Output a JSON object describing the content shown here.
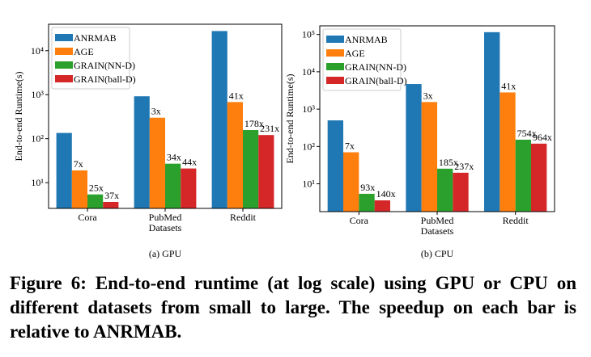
{
  "chart_data": [
    {
      "type": "bar",
      "subcaption": "(a)  GPU",
      "xlabel": "Datasets",
      "ylabel": "End-to-end Runtime(s)",
      "log_y": true,
      "categories": [
        "Cora",
        "PubMed",
        "Reddit"
      ],
      "ylim": [
        2.6,
        40000
      ],
      "yticks": [
        {
          "value": 10,
          "label": "10¹"
        },
        {
          "value": 100,
          "label": "10²"
        },
        {
          "value": 1000,
          "label": "10³"
        },
        {
          "value": 10000,
          "label": "10⁴"
        }
      ],
      "legend": "upper left",
      "series": [
        {
          "name": "ANRMAB",
          "color": "#1f77b4",
          "values": [
            135,
            920,
            28000
          ]
        },
        {
          "name": "AGE",
          "color": "#ff7f0e",
          "values": [
            19,
            300,
            680
          ],
          "labels": [
            "7x",
            "3x",
            "41x"
          ]
        },
        {
          "name": "GRAIN(NN-D)",
          "color": "#2ca02c",
          "values": [
            5.4,
            27,
            157
          ],
          "labels": [
            "25x",
            "34x",
            "178x"
          ]
        },
        {
          "name": "GRAIN(ball-D)",
          "color": "#d62728",
          "values": [
            3.65,
            21,
            121
          ],
          "labels": [
            "37x",
            "44x",
            "231x"
          ]
        }
      ]
    },
    {
      "type": "bar",
      "subcaption": "(b)  CPU",
      "xlabel": "Datasets",
      "ylabel": "End-to-end Runtime(s)",
      "log_y": true,
      "categories": [
        "Cora",
        "PubMed",
        "Reddit"
      ],
      "ylim": [
        1.8,
        170000
      ],
      "yticks": [
        {
          "value": 10,
          "label": "10¹"
        },
        {
          "value": 100,
          "label": "10²"
        },
        {
          "value": 1000,
          "label": "10³"
        },
        {
          "value": 10000,
          "label": "10⁴"
        },
        {
          "value": 100000,
          "label": "10⁵"
        }
      ],
      "legend": "upper left",
      "series": [
        {
          "name": "ANRMAB",
          "color": "#1f77b4",
          "values": [
            500,
            4700,
            115000
          ]
        },
        {
          "name": "AGE",
          "color": "#ff7f0e",
          "values": [
            70,
            1550,
            2800
          ],
          "labels": [
            "7x",
            "3x",
            "41x"
          ]
        },
        {
          "name": "GRAIN(NN-D)",
          "color": "#2ca02c",
          "values": [
            5.4,
            25.4,
            152
          ],
          "labels": [
            "93x",
            "185x",
            "754x"
          ]
        },
        {
          "name": "GRAIN(ball-D)",
          "color": "#d62728",
          "values": [
            3.6,
            19.8,
            119
          ],
          "labels": [
            "140x",
            "237x",
            "964x"
          ]
        }
      ]
    }
  ],
  "caption": "Figure 6: End-to-end runtime (at log scale) using GPU or CPU on different datasets from small to large. The speedup on each bar is relative to ANRMAB."
}
